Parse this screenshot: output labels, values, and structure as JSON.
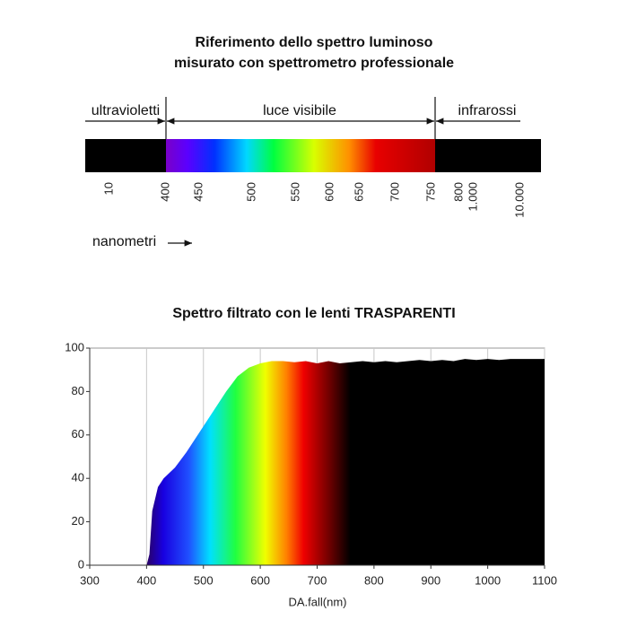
{
  "reference": {
    "title": [
      "Riferimento dello spettro luminoso",
      "misurato con spettrometro professionale"
    ],
    "regions": [
      "ultravioletti",
      "luce visibile",
      "infrarossi"
    ],
    "ticks": [
      "10",
      "400",
      "450",
      "500",
      "550",
      "600",
      "650",
      "700",
      "750",
      "800",
      "1.000",
      "10.000"
    ],
    "unit_label": "nanometri"
  },
  "chart_data": {
    "type": "area",
    "title": "Spettro filtrato con le lenti TRASPARENTI",
    "xlabel": "DA.fall(nm)",
    "x": [
      400,
      405,
      410,
      420,
      430,
      450,
      470,
      500,
      520,
      540,
      560,
      580,
      600,
      620,
      640,
      660,
      680,
      700,
      720,
      740,
      760,
      780,
      800,
      820,
      840,
      860,
      880,
      900,
      920,
      940,
      960,
      980,
      1000,
      1020,
      1040,
      1060,
      1080,
      1100
    ],
    "values": [
      0,
      5,
      25,
      36,
      40,
      45,
      52,
      64,
      72,
      80,
      87,
      91,
      93,
      94,
      94,
      93.5,
      94,
      93,
      94,
      93,
      93.5,
      94,
      93.5,
      94,
      93.5,
      94,
      94.5,
      94,
      94.5,
      94,
      95,
      94.5,
      95,
      94.5,
      95,
      95,
      95,
      95
    ],
    "xlim": [
      300,
      1100
    ],
    "ylim": [
      0,
      100
    ],
    "xticks": [
      300,
      400,
      500,
      600,
      700,
      800,
      900,
      1000,
      1100
    ],
    "yticks": [
      0,
      20,
      40,
      60,
      80,
      100
    ],
    "grid": true
  }
}
